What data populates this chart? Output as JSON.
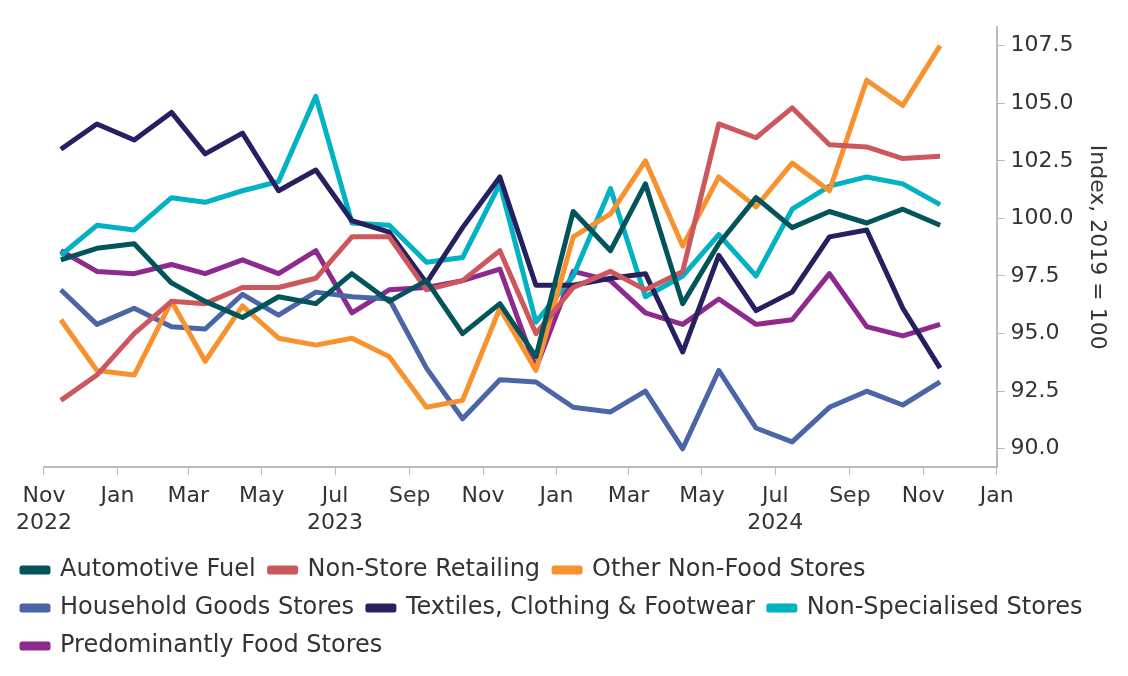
{
  "chart_data": {
    "type": "line",
    "ylabel": "Index, 2019 = 100",
    "x": [
      "2022-11-15",
      "2022-12-15",
      "2023-01-15",
      "2023-02-15",
      "2023-03-15",
      "2023-04-15",
      "2023-05-15",
      "2023-06-15",
      "2023-07-15",
      "2023-08-15",
      "2023-09-15",
      "2023-10-15",
      "2023-11-15",
      "2023-12-15",
      "2024-01-15",
      "2024-02-15",
      "2024-03-15",
      "2024-04-15",
      "2024-05-15",
      "2024-06-15",
      "2024-07-15",
      "2024-08-15",
      "2024-09-15",
      "2024-10-15",
      "2024-11-15"
    ],
    "series": [
      {
        "name": "Automotive Fuel",
        "color": "#00545a",
        "values": [
          98.2,
          98.7,
          98.9,
          97.2,
          96.4,
          95.7,
          96.6,
          96.3,
          97.6,
          96.4,
          97.3,
          95.0,
          96.3,
          94.0,
          100.3,
          98.6,
          101.5,
          96.3,
          98.9,
          100.9,
          99.6,
          100.3,
          99.8,
          100.4,
          99.7
        ]
      },
      {
        "name": "Non-Store Retailing",
        "color": "#cd575f",
        "values": [
          92.1,
          93.2,
          95.0,
          96.4,
          96.3,
          97.0,
          97.0,
          97.4,
          99.2,
          99.2,
          96.9,
          97.3,
          98.6,
          95.0,
          97.0,
          97.7,
          96.9,
          97.7,
          104.1,
          103.5,
          104.8,
          103.2,
          103.1,
          102.6,
          102.7
        ]
      },
      {
        "name": "Other Non-Food Stores",
        "color": "#f7922e",
        "values": [
          95.6,
          93.4,
          93.2,
          96.4,
          93.8,
          96.2,
          94.8,
          94.5,
          94.8,
          94.0,
          91.8,
          92.1,
          96.1,
          93.4,
          99.2,
          100.2,
          102.5,
          98.8,
          101.8,
          100.5,
          102.4,
          101.2,
          106.0,
          104.9,
          107.5
        ]
      },
      {
        "name": "Household Goods Stores",
        "color": "#4a66a6",
        "values": [
          96.9,
          95.4,
          96.1,
          95.3,
          95.2,
          96.7,
          95.8,
          96.8,
          96.6,
          96.5,
          93.5,
          91.3,
          93.0,
          92.9,
          91.8,
          91.6,
          92.5,
          90.0,
          93.4,
          90.9,
          90.3,
          91.8,
          92.5,
          91.9,
          92.9
        ]
      },
      {
        "name": "Textiles, Clothing & Footwear",
        "color": "#272060",
        "values": [
          103.0,
          104.1,
          103.4,
          104.6,
          102.8,
          103.7,
          101.2,
          102.1,
          99.9,
          99.4,
          97.2,
          99.6,
          101.8,
          97.1,
          97.1,
          97.4,
          97.6,
          94.2,
          98.4,
          96.0,
          96.8,
          99.2,
          99.5,
          96.1,
          93.5
        ]
      },
      {
        "name": "Non-Specialised Stores",
        "color": "#00b2c3",
        "values": [
          98.4,
          99.7,
          99.5,
          100.9,
          100.7,
          101.2,
          101.6,
          105.3,
          99.8,
          99.7,
          98.1,
          98.3,
          101.5,
          95.5,
          97.5,
          101.3,
          96.6,
          97.5,
          99.3,
          97.5,
          100.4,
          101.4,
          101.8,
          101.5,
          100.6
        ]
      },
      {
        "name": "Predominantly Food Stores",
        "color": "#8e2a8e",
        "values": [
          98.6,
          97.7,
          97.6,
          98.0,
          97.6,
          98.2,
          97.6,
          98.6,
          95.9,
          96.9,
          97.0,
          97.3,
          97.8,
          93.5,
          97.7,
          97.3,
          95.9,
          95.4,
          96.5,
          95.4,
          95.6,
          97.6,
          95.3,
          94.9,
          95.4
        ]
      }
    ],
    "xlim": [
      "2022-11-01",
      "2025-01-01"
    ],
    "xticks": [
      {
        "value": "2022-11-01",
        "label": "Nov 2022"
      },
      {
        "value": "2023-01-01",
        "label": "Jan"
      },
      {
        "value": "2023-03-01",
        "label": "Mar"
      },
      {
        "value": "2023-05-01",
        "label": "May"
      },
      {
        "value": "2023-07-01",
        "label": "Jul 2023"
      },
      {
        "value": "2023-09-01",
        "label": "Sep"
      },
      {
        "value": "2023-11-01",
        "label": "Nov"
      },
      {
        "value": "2024-01-01",
        "label": "Jan"
      },
      {
        "value": "2024-03-01",
        "label": "Mar"
      },
      {
        "value": "2024-05-01",
        "label": "May"
      },
      {
        "value": "2024-07-01",
        "label": "Jul 2024"
      },
      {
        "value": "2024-09-01",
        "label": "Sep"
      },
      {
        "value": "2024-11-01",
        "label": "Nov"
      },
      {
        "value": "2025-01-01",
        "label": "Jan"
      }
    ],
    "ylim": [
      89.2,
      108.3
    ],
    "yticks": [
      {
        "value": 90,
        "label": "90.0"
      },
      {
        "value": 92.5,
        "label": "92.5"
      },
      {
        "value": 95,
        "label": "95.0"
      },
      {
        "value": 97.5,
        "label": "97.5"
      },
      {
        "value": 100,
        "label": "100.0"
      },
      {
        "value": 102.5,
        "label": "102.5"
      },
      {
        "value": 105,
        "label": "105.0"
      },
      {
        "value": 107.5,
        "label": "107.5"
      }
    ],
    "grid": false,
    "legend": "bottom",
    "marker": "none",
    "line_style": "solid"
  }
}
